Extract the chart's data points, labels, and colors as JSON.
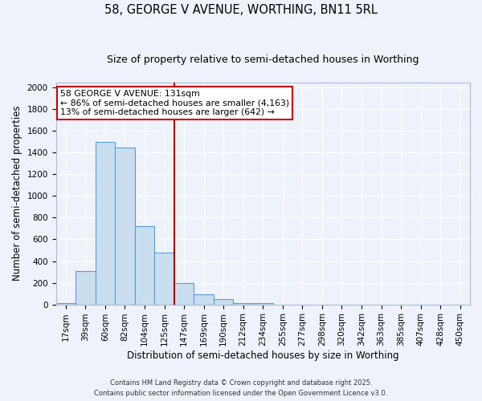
{
  "title1": "58, GEORGE V AVENUE, WORTHING, BN11 5RL",
  "title2": "Size of property relative to semi-detached houses in Worthing",
  "xlabel": "Distribution of semi-detached houses by size in Worthing",
  "ylabel": "Number of semi-detached properties",
  "categories": [
    "17sqm",
    "39sqm",
    "60sqm",
    "82sqm",
    "104sqm",
    "125sqm",
    "147sqm",
    "169sqm",
    "190sqm",
    "212sqm",
    "234sqm",
    "255sqm",
    "277sqm",
    "298sqm",
    "320sqm",
    "342sqm",
    "363sqm",
    "385sqm",
    "407sqm",
    "428sqm",
    "450sqm"
  ],
  "values": [
    15,
    310,
    1500,
    1450,
    725,
    480,
    200,
    90,
    50,
    15,
    15,
    0,
    0,
    0,
    0,
    0,
    0,
    0,
    0,
    0,
    0
  ],
  "bar_color": "#c9dff0",
  "bar_edge_color": "#5b9bd5",
  "vline_pos": 5.5,
  "vline_color": "#aa0000",
  "annotation_title": "58 GEORGE V AVENUE: 131sqm",
  "annotation_line1": "← 86% of semi-detached houses are smaller (4,163)",
  "annotation_line2": "13% of semi-detached houses are larger (642) →",
  "annotation_box_facecolor": "#ffffff",
  "annotation_box_edgecolor": "#cc0000",
  "ylim": [
    0,
    2050
  ],
  "yticks": [
    0,
    200,
    400,
    600,
    800,
    1000,
    1200,
    1400,
    1600,
    1800,
    2000
  ],
  "footnote1": "Contains HM Land Registry data © Crown copyright and database right 2025.",
  "footnote2": "Contains public sector information licensed under the Open Government Licence v3.0.",
  "bg_color": "#eef2fa",
  "grid_color": "#ffffff",
  "title1_fontsize": 10.5,
  "title2_fontsize": 9,
  "tick_fontsize": 7.5,
  "label_fontsize": 8.5
}
